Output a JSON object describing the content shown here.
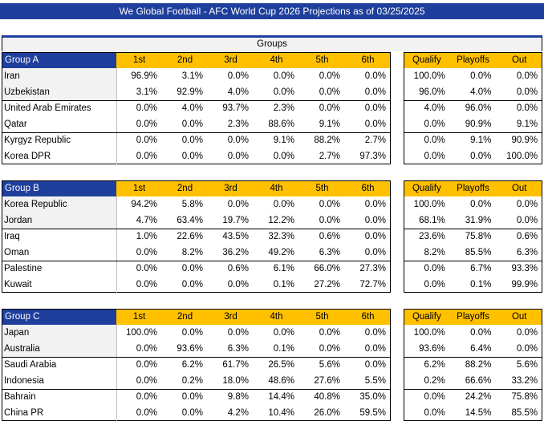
{
  "title": "We Global Football - AFC World Cup 2026 Projections as of 03/25/2025",
  "groups_header": "Groups",
  "groups": [
    {
      "name": "Group A",
      "columns": [
        "1st",
        "2nd",
        "3rd",
        "4th",
        "5th",
        "6th"
      ],
      "outcome_columns": [
        "Qualify",
        "Playoffs",
        "Out"
      ],
      "rows": [
        {
          "team": "Iran",
          "positions": [
            "96.9%",
            "3.1%",
            "0.0%",
            "0.0%",
            "0.0%",
            "0.0%"
          ],
          "outcomes": [
            "100.0%",
            "0.0%",
            "0.0%"
          ]
        },
        {
          "team": "Uzbekistan",
          "positions": [
            "3.1%",
            "92.9%",
            "4.0%",
            "0.0%",
            "0.0%",
            "0.0%"
          ],
          "outcomes": [
            "96.0%",
            "4.0%",
            "0.0%"
          ]
        },
        {
          "team": "United Arab Emirates",
          "positions": [
            "0.0%",
            "4.0%",
            "93.7%",
            "2.3%",
            "0.0%",
            "0.0%"
          ],
          "outcomes": [
            "4.0%",
            "96.0%",
            "0.0%"
          ]
        },
        {
          "team": "Qatar",
          "positions": [
            "0.0%",
            "0.0%",
            "2.3%",
            "88.6%",
            "9.1%",
            "0.0%"
          ],
          "outcomes": [
            "0.0%",
            "90.9%",
            "9.1%"
          ]
        },
        {
          "team": "Kyrgyz Republic",
          "positions": [
            "0.0%",
            "0.0%",
            "0.0%",
            "9.1%",
            "88.2%",
            "2.7%"
          ],
          "outcomes": [
            "0.0%",
            "9.1%",
            "90.9%"
          ]
        },
        {
          "team": "Korea DPR",
          "positions": [
            "0.0%",
            "0.0%",
            "0.0%",
            "0.0%",
            "2.7%",
            "97.3%"
          ],
          "outcomes": [
            "0.0%",
            "0.0%",
            "100.0%"
          ]
        }
      ]
    },
    {
      "name": "Group B",
      "columns": [
        "1st",
        "2nd",
        "3rd",
        "4th",
        "5th",
        "6th"
      ],
      "outcome_columns": [
        "Qualify",
        "Playoffs",
        "Out"
      ],
      "rows": [
        {
          "team": "Korea Republic",
          "positions": [
            "94.2%",
            "5.8%",
            "0.0%",
            "0.0%",
            "0.0%",
            "0.0%"
          ],
          "outcomes": [
            "100.0%",
            "0.0%",
            "0.0%"
          ]
        },
        {
          "team": "Jordan",
          "positions": [
            "4.7%",
            "63.4%",
            "19.7%",
            "12.2%",
            "0.0%",
            "0.0%"
          ],
          "outcomes": [
            "68.1%",
            "31.9%",
            "0.0%"
          ]
        },
        {
          "team": "Iraq",
          "positions": [
            "1.0%",
            "22.6%",
            "43.5%",
            "32.3%",
            "0.6%",
            "0.0%"
          ],
          "outcomes": [
            "23.6%",
            "75.8%",
            "0.6%"
          ]
        },
        {
          "team": "Oman",
          "positions": [
            "0.0%",
            "8.2%",
            "36.2%",
            "49.2%",
            "6.3%",
            "0.0%"
          ],
          "outcomes": [
            "8.2%",
            "85.5%",
            "6.3%"
          ]
        },
        {
          "team": "Palestine",
          "positions": [
            "0.0%",
            "0.0%",
            "0.6%",
            "6.1%",
            "66.0%",
            "27.3%"
          ],
          "outcomes": [
            "0.0%",
            "6.7%",
            "93.3%"
          ]
        },
        {
          "team": "Kuwait",
          "positions": [
            "0.0%",
            "0.0%",
            "0.0%",
            "0.1%",
            "27.2%",
            "72.7%"
          ],
          "outcomes": [
            "0.0%",
            "0.1%",
            "99.9%"
          ]
        }
      ]
    },
    {
      "name": "Group C",
      "columns": [
        "1st",
        "2nd",
        "3rd",
        "4th",
        "5th",
        "6th"
      ],
      "outcome_columns": [
        "Qualify",
        "Playoffs",
        "Out"
      ],
      "rows": [
        {
          "team": "Japan",
          "positions": [
            "100.0%",
            "0.0%",
            "0.0%",
            "0.0%",
            "0.0%",
            "0.0%"
          ],
          "outcomes": [
            "100.0%",
            "0.0%",
            "0.0%"
          ]
        },
        {
          "team": "Australia",
          "positions": [
            "0.0%",
            "93.6%",
            "6.3%",
            "0.1%",
            "0.0%",
            "0.0%"
          ],
          "outcomes": [
            "93.6%",
            "6.4%",
            "0.0%"
          ]
        },
        {
          "team": "Saudi Arabia",
          "positions": [
            "0.0%",
            "6.2%",
            "61.7%",
            "26.5%",
            "5.6%",
            "0.0%"
          ],
          "outcomes": [
            "6.2%",
            "88.2%",
            "5.6%"
          ]
        },
        {
          "team": "Indonesia",
          "positions": [
            "0.0%",
            "0.2%",
            "18.0%",
            "48.6%",
            "27.6%",
            "5.5%"
          ],
          "outcomes": [
            "0.2%",
            "66.6%",
            "33.2%"
          ]
        },
        {
          "team": "Bahrain",
          "positions": [
            "0.0%",
            "0.0%",
            "9.8%",
            "14.4%",
            "40.8%",
            "35.0%"
          ],
          "outcomes": [
            "0.0%",
            "24.2%",
            "75.8%"
          ]
        },
        {
          "team": "China PR",
          "positions": [
            "0.0%",
            "0.0%",
            "4.2%",
            "10.4%",
            "26.0%",
            "59.5%"
          ],
          "outcomes": [
            "0.0%",
            "14.5%",
            "85.5%"
          ]
        }
      ]
    }
  ]
}
